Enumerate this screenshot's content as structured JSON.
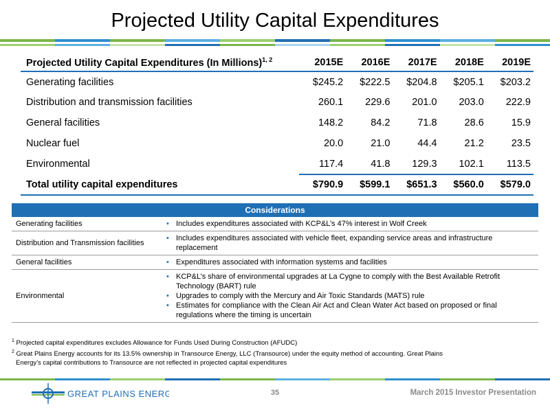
{
  "slide_title": "Projected Utility Capital Expenditures",
  "colors": {
    "brand_blue": "#1f6fb5",
    "brand_green": "#7ab648",
    "footer_gray": "#8a8a8a"
  },
  "table": {
    "header_label": "Projected Utility Capital Expenditures (In Millions)",
    "header_sup": "1, 2",
    "years": [
      "2015E",
      "2016E",
      "2017E",
      "2018E",
      "2019E"
    ],
    "rows": [
      {
        "label": "Generating facilities",
        "values": [
          "$245.2",
          "$222.5",
          "$204.8",
          "$205.1",
          "$203.2"
        ]
      },
      {
        "label": "Distribution and transmission facilities",
        "values": [
          "260.1",
          "229.6",
          "201.0",
          "203.0",
          "222.9"
        ]
      },
      {
        "label": "General facilities",
        "values": [
          "148.2",
          "84.2",
          "71.8",
          "28.6",
          "15.9"
        ]
      },
      {
        "label": "Nuclear fuel",
        "values": [
          "20.0",
          "21.0",
          "44.4",
          "21.2",
          "23.5"
        ]
      },
      {
        "label": "Environmental",
        "values": [
          "117.4",
          "41.8",
          "129.3",
          "102.1",
          "113.5"
        ]
      }
    ],
    "total": {
      "label": "Total utility capital expenditures",
      "values": [
        "$790.9",
        "$599.1",
        "$651.3",
        "$560.0",
        "$579.0"
      ]
    }
  },
  "considerations": {
    "header": "Considerations",
    "rows": [
      {
        "category": "Generating facilities",
        "bullets": [
          "Includes expenditures associated with KCP&L’s 47% interest in Wolf Creek"
        ]
      },
      {
        "category": "Distribution and Transmission facilities",
        "bullets": [
          "Includes expenditures associated with vehicle fleet, expanding service areas and infrastructure replacement"
        ]
      },
      {
        "category": "General facilities",
        "bullets": [
          "Expenditures associated with information systems and facilities"
        ]
      },
      {
        "category": "Environmental",
        "bullets": [
          "KCP&L’s share of environmental upgrades at La Cygne to comply with the Best Available Retrofit Technology (BART) rule",
          "Upgrades to comply with the Mercury and Air Toxic Standards (MATS) rule",
          "Estimates for compliance with the Clean Air Act and Clean Water Act based on proposed or final regulations where the timing is uncertain"
        ]
      }
    ]
  },
  "footnotes": {
    "fn1_mark": "1",
    "fn1": "Projected capital expenditures excludes Allowance for Funds Used During Construction (AFUDC)",
    "fn2_mark": "2",
    "fn2_line1": "Great Plains Energy accounts for its 13.5% ownership in Transource Energy, LLC (Transource) under the equity method of accounting.  Great Plains",
    "fn2_line2": "Energy’s capital contributions to Transource are not reflected in projected capital expenditures"
  },
  "footer": {
    "logo_text": "GREAT PLAINS ENERGY",
    "page_number": "35",
    "presentation": "March 2015 Investor Presentation"
  }
}
